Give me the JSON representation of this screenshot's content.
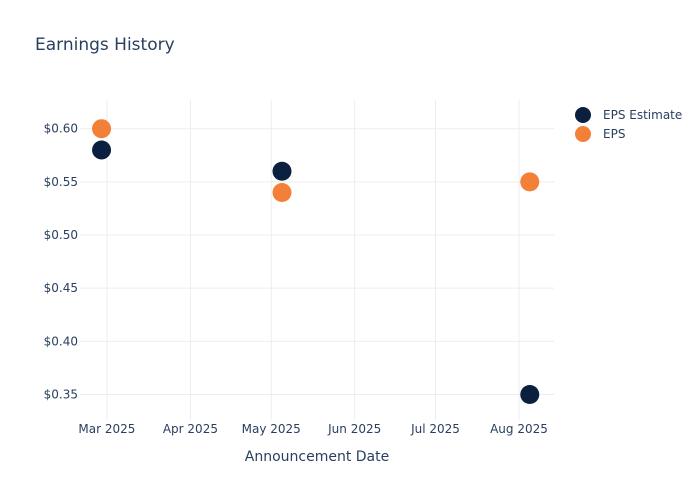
{
  "chart_data": {
    "type": "scatter",
    "title": "Earnings History",
    "xlabel": "Announcement Date",
    "ylabel": "",
    "x_ticks": [
      "Mar 2025",
      "Apr 2025",
      "May 2025",
      "Jun 2025",
      "Jul 2025",
      "Aug 2025"
    ],
    "y_ticks": [
      "$0.35",
      "$0.40",
      "$0.45",
      "$0.50",
      "$0.55",
      "$0.60"
    ],
    "xlim": [
      "2025-02-19",
      "2025-08-14"
    ],
    "ylim": [
      0.326,
      0.627
    ],
    "grid": true,
    "legend_position": "top-right",
    "series": [
      {
        "name": "EPS Estimate",
        "color": "#0b1f3f",
        "points": [
          {
            "x": "2025-02-27",
            "y": 0.58
          },
          {
            "x": "2025-05-05",
            "y": 0.56
          },
          {
            "x": "2025-08-05",
            "y": 0.35
          }
        ]
      },
      {
        "name": "EPS",
        "color": "#f47f37",
        "points": [
          {
            "x": "2025-02-27",
            "y": 0.6
          },
          {
            "x": "2025-05-05",
            "y": 0.54
          },
          {
            "x": "2025-08-05",
            "y": 0.55
          }
        ]
      }
    ]
  }
}
